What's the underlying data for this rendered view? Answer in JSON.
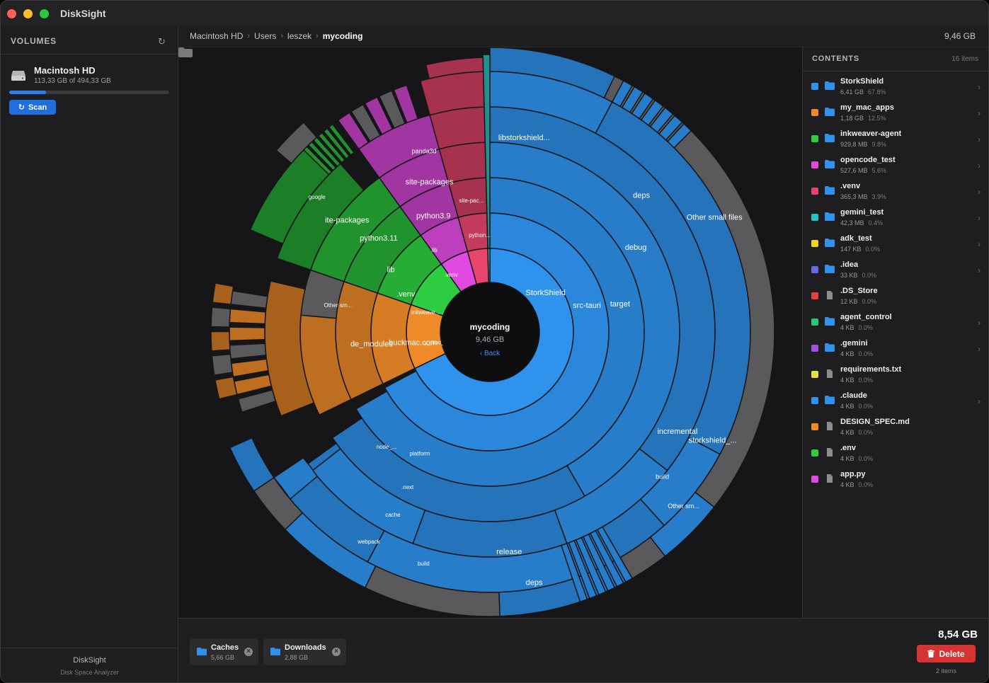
{
  "window": {
    "title": "DiskSight"
  },
  "sidebar": {
    "heading": "VOLUMES",
    "volume": {
      "name": "Macintosh HD",
      "usage": "113,33 GB of 494,33 GB",
      "used_fraction": 0.229
    },
    "scan_label": "Scan",
    "footer_title": "DiskSight",
    "footer_subtitle": "Disk Space Analyzer"
  },
  "breadcrumb": {
    "items": [
      "Macintosh HD",
      "Users",
      "leszek",
      "mycoding"
    ],
    "total": "9,46 GB"
  },
  "chart_center": {
    "name": "mycoding",
    "size": "9,46 GB",
    "back_label": "Back"
  },
  "chart_data": {
    "type": "sunburst",
    "root": {
      "name": "mycoding",
      "size": "9,46 GB"
    },
    "ring1": [
      {
        "name": "StorkShield",
        "percent": 67.8,
        "color": "#2f93ee"
      },
      {
        "name": "my_mac_apps",
        "percent": 12.5,
        "color": "#ee8a28"
      },
      {
        "name": "inkweaver-agent",
        "percent": 9.8,
        "color": "#2ecc40"
      },
      {
        "name": "opencode_test",
        "percent": 5.6,
        "color": "#e04ae0"
      },
      {
        "name": ".venv",
        "percent": 3.9,
        "color": "#e8456e"
      },
      {
        "name": "gemini_test",
        "percent": 0.4,
        "color": "#25c3c3"
      }
    ],
    "labels": [
      "StorkShield",
      "src-tauri",
      "target",
      "debug",
      "deps",
      "libstorkshield...",
      "Other small files",
      "release",
      "deps",
      "Other small files",
      "incremental",
      "storkshield_...",
      "build",
      "Other sm...",
      "platform",
      "node_...",
      ".next",
      "cache",
      "webpack",
      "build",
      "y_mac_app...",
      "buckmac.com",
      "de_modules",
      "Other sm...",
      "inkweave...",
      ".venv",
      "lib",
      "python3.11",
      "ite-packages",
      "google",
      ".venv",
      "lib",
      "python3.9",
      "site-packages",
      "panda3d",
      "python...",
      "site-pac..."
    ]
  },
  "contents": {
    "heading": "CONTENTS",
    "count": "16 items",
    "items": [
      {
        "name": "StorkShield",
        "size": "6,41 GB",
        "percent": "67.8%",
        "color": "#2f93ee",
        "type": "folder"
      },
      {
        "name": "my_mac_apps",
        "size": "1,18 GB",
        "percent": "12.5%",
        "color": "#ee8a28",
        "type": "folder"
      },
      {
        "name": "inkweaver-agent",
        "size": "929,8 MB",
        "percent": "9.8%",
        "color": "#2ecc40",
        "type": "folder"
      },
      {
        "name": "opencode_test",
        "size": "527,6 MB",
        "percent": "5.6%",
        "color": "#e04ae0",
        "type": "folder"
      },
      {
        "name": ".venv",
        "size": "365,3 MB",
        "percent": "3.9%",
        "color": "#e8456e",
        "type": "folder"
      },
      {
        "name": "gemini_test",
        "size": "42,3 MB",
        "percent": "0.4%",
        "color": "#25c3c3",
        "type": "folder"
      },
      {
        "name": "adk_test",
        "size": "147 KB",
        "percent": "0.0%",
        "color": "#f2d41e",
        "type": "folder"
      },
      {
        "name": ".idea",
        "size": "33 KB",
        "percent": "0.0%",
        "color": "#6a6ae8",
        "type": "folder"
      },
      {
        "name": ".DS_Store",
        "size": "12 KB",
        "percent": "0.0%",
        "color": "#e84040",
        "type": "file"
      },
      {
        "name": "agent_control",
        "size": "4 KB",
        "percent": "0.0%",
        "color": "#2cc47a",
        "type": "folder"
      },
      {
        "name": ".gemini",
        "size": "4 KB",
        "percent": "0.0%",
        "color": "#a050e0",
        "type": "folder"
      },
      {
        "name": "requirements.txt",
        "size": "4 KB",
        "percent": "0.0%",
        "color": "#e0e040",
        "type": "file"
      },
      {
        "name": ".claude",
        "size": "4 KB",
        "percent": "0.0%",
        "color": "#2f93ee",
        "type": "folder"
      },
      {
        "name": "DESIGN_SPEC.md",
        "size": "4 KB",
        "percent": "0.0%",
        "color": "#ee8a28",
        "type": "file"
      },
      {
        "name": ".env",
        "size": "4 KB",
        "percent": "0.0%",
        "color": "#2ecc40",
        "type": "file"
      },
      {
        "name": "app.py",
        "size": "4 KB",
        "percent": "0.0%",
        "color": "#e04ae0",
        "type": "file"
      }
    ]
  },
  "selection": {
    "items": [
      {
        "name": "Caches",
        "size": "5,66 GB"
      },
      {
        "name": "Downloads",
        "size": "2,88 GB"
      }
    ],
    "total": "8,54 GB",
    "delete_label": "Delete",
    "count": "2 items"
  },
  "icons": {
    "refresh": "refresh-icon",
    "disk": "hard-disk-icon",
    "folder": "folder-icon",
    "file": "file-icon",
    "chevron": "chevron-right-icon",
    "trash": "trash-icon",
    "close": "close-icon"
  }
}
